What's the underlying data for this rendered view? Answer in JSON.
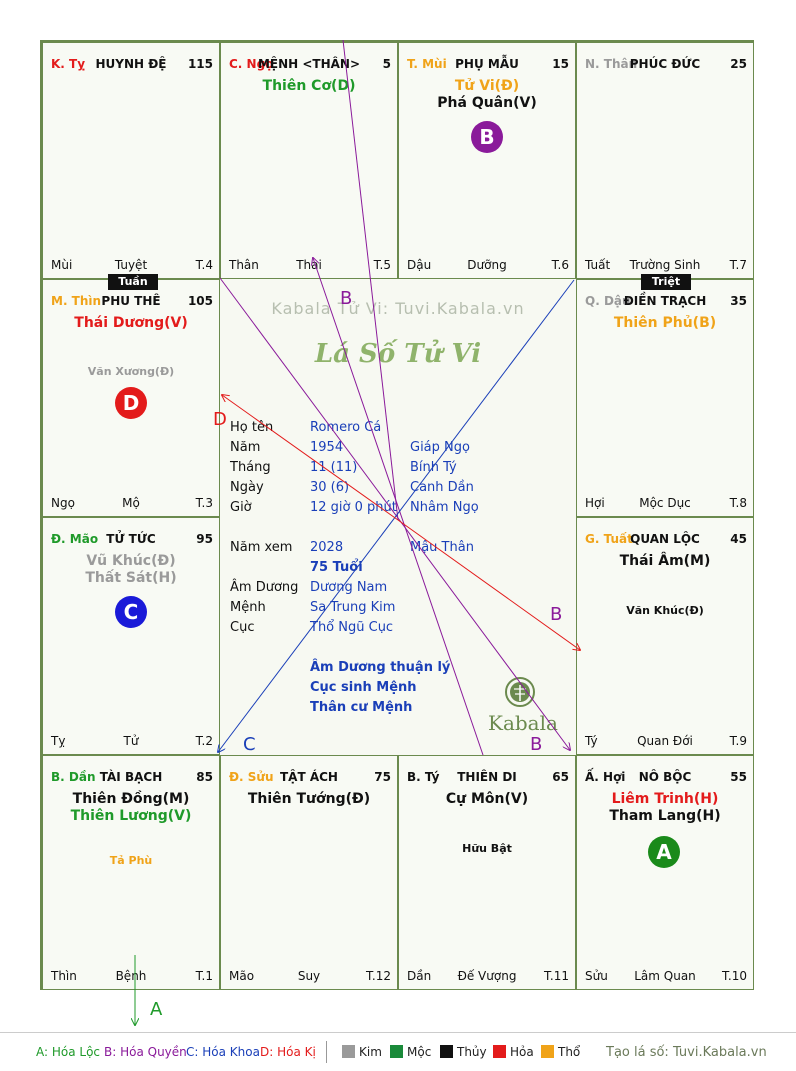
{
  "colors": {
    "fire": "#e31b1b",
    "earth": "#f0a319",
    "wood": "#1f9a2a",
    "metal": "#9a9a9a",
    "water": "#111111",
    "quyen": "#8a1a9a",
    "khoa": "#1a3fb8"
  },
  "cells": [
    {
      "id": "huynh-de",
      "chi": "K. Tỵ",
      "chi_color": "#e31b1b",
      "name": "HUYNH ĐỆ",
      "num": "115",
      "stars": [],
      "minors": [],
      "ft_l": "Mùi",
      "ft_c": "Tuyệt",
      "ft_r": "T.4"
    },
    {
      "id": "menh",
      "chi": "C. Ngọ",
      "chi_color": "#e31b1b",
      "name": "MỆNH <THÂN>",
      "num": "5",
      "stars": [
        {
          "text": "Thiên Cơ(D)",
          "color": "#1f9a2a"
        }
      ],
      "minors": [],
      "ft_l": "Thân",
      "ft_c": "Thai",
      "ft_r": "T.5"
    },
    {
      "id": "phu-mau",
      "chi": "T. Mùi",
      "chi_color": "#f0a319",
      "name": "PHỤ MẪU",
      "num": "15",
      "stars": [
        {
          "text": "Tử Vi(Đ)",
          "color": "#f0a319"
        },
        {
          "text": "Phá Quân(V)",
          "color": "#111111"
        }
      ],
      "minors": [],
      "ft_l": "Dậu",
      "ft_c": "Dưỡng",
      "ft_r": "T.6"
    },
    {
      "id": "phuc-duc",
      "chi": "N. Thân",
      "chi_color": "#9a9a9a",
      "name": "PHÚC ĐỨC",
      "num": "25",
      "stars": [],
      "minors": [],
      "ft_l": "Tuất",
      "ft_c": "Trường Sinh",
      "ft_r": "T.7"
    },
    {
      "id": "phu-the",
      "chi": "M. Thìn",
      "chi_color": "#f0a319",
      "name": "PHU THÊ",
      "num": "105",
      "stars": [
        {
          "text": "Thái Dương(V)",
          "color": "#e31b1b"
        }
      ],
      "minors": [
        {
          "text": "Văn Xương(Đ)",
          "color": "#9a9a9a"
        }
      ],
      "ft_l": "Ngọ",
      "ft_c": "Mộ",
      "ft_r": "T.3"
    },
    {
      "id": "dien-trach",
      "chi": "Q. Dậu",
      "chi_color": "#9a9a9a",
      "name": "ĐIỀN TRẠCH",
      "num": "35",
      "stars": [
        {
          "text": "Thiên Phủ(B)",
          "color": "#f0a319"
        }
      ],
      "minors": [],
      "ft_l": "Hợi",
      "ft_c": "Mộc Dục",
      "ft_r": "T.8"
    },
    {
      "id": "tu-tuc",
      "chi": "Đ. Mão",
      "chi_color": "#1f9a2a",
      "name": "TỬ TỨC",
      "num": "95",
      "stars": [
        {
          "text": "Vũ Khúc(Đ)",
          "color": "#9a9a9a"
        },
        {
          "text": "Thất Sát(H)",
          "color": "#9a9a9a"
        }
      ],
      "minors": [],
      "ft_l": "Tỵ",
      "ft_c": "Tử",
      "ft_r": "T.2"
    },
    {
      "id": "quan-loc",
      "chi": "G. Tuất",
      "chi_color": "#f0a319",
      "name": "QUAN LỘC",
      "num": "45",
      "stars": [
        {
          "text": "Thái Âm(M)",
          "color": "#111111"
        }
      ],
      "minors": [
        {
          "text": "Văn Khúc(Đ)",
          "color": "#111111"
        }
      ],
      "ft_l": "Tý",
      "ft_c": "Quan Đới",
      "ft_r": "T.9"
    },
    {
      "id": "tai-bach",
      "chi": "B. Dần",
      "chi_color": "#1f9a2a",
      "name": "TÀI BẠCH",
      "num": "85",
      "stars": [
        {
          "text": "Thiên Đồng(M)",
          "color": "#111111"
        },
        {
          "text": "Thiên Lương(V)",
          "color": "#1f9a2a"
        }
      ],
      "minors": [
        {
          "text": "Tả Phù",
          "color": "#f0a319"
        }
      ],
      "ft_l": "Thìn",
      "ft_c": "Bệnh",
      "ft_r": "T.1"
    },
    {
      "id": "tat-ach",
      "chi": "Đ. Sửu",
      "chi_color": "#f0a319",
      "name": "TẬT ÁCH",
      "num": "75",
      "stars": [
        {
          "text": "Thiên Tướng(Đ)",
          "color": "#111111"
        }
      ],
      "minors": [],
      "ft_l": "Mão",
      "ft_c": "Suy",
      "ft_r": "T.12"
    },
    {
      "id": "thien-di",
      "chi": "B. Tý",
      "chi_color": "#111111",
      "name": "THIÊN DI",
      "num": "65",
      "stars": [
        {
          "text": "Cự Môn(V)",
          "color": "#111111"
        }
      ],
      "minors": [
        {
          "text": "Hữu Bật",
          "color": "#111111"
        }
      ],
      "ft_l": "Dần",
      "ft_c": "Đế Vượng",
      "ft_r": "T.11"
    },
    {
      "id": "no-boc",
      "chi": "Ấ. Hợi",
      "chi_color": "#111111",
      "name": "NÔ BỘC",
      "num": "55",
      "stars": [
        {
          "text": "Liêm Trinh(H)",
          "color": "#e31b1b"
        },
        {
          "text": "Tham Lang(H)",
          "color": "#111111"
        }
      ],
      "minors": [],
      "ft_l": "Sửu",
      "ft_c": "Lâm Quan",
      "ft_r": "T.10"
    }
  ],
  "badges": {
    "a": "A",
    "b": "B",
    "c": "C",
    "d": "D"
  },
  "tags": {
    "tuan": "Tuần",
    "triet": "Triệt"
  },
  "center": {
    "watermark": "Kabala Tử Vi: Tuvi.Kabala.vn",
    "logo_title": "Lá Số Tử Vi",
    "rows": [
      {
        "label": "Họ tên",
        "v1": "Romero Cá",
        "v2": ""
      },
      {
        "label": "Năm",
        "v1": "1954",
        "v2": "Giáp Ngọ"
      },
      {
        "label": "Tháng",
        "v1": "11 (11)",
        "v2": "Bính Tý"
      },
      {
        "label": "Ngày",
        "v1": "30 (6)",
        "v2": "Canh Dần"
      },
      {
        "label": "Giờ",
        "v1": "12 giờ 0 phút",
        "v2": "Nhâm Ngọ"
      }
    ],
    "rows2": [
      {
        "label": "Năm xem",
        "v1": "2028",
        "v2": "Mậu Thân"
      },
      {
        "label": "",
        "v1": "75 Tuổi",
        "v2": ""
      },
      {
        "label": "Âm Dương",
        "v1": "Dương Nam",
        "v2": ""
      },
      {
        "label": "Mệnh",
        "v1": "Sa Trung Kim",
        "v2": ""
      },
      {
        "label": "Cục",
        "v1": "Thổ Ngũ Cục",
        "v2": ""
      }
    ],
    "notes": [
      "Âm Dương thuận lý",
      "Cục sinh Mệnh",
      "Thân cư Mệnh"
    ],
    "brand": "Kabala"
  },
  "lines": {
    "b1": "B",
    "b2": "B",
    "b3": "B",
    "c": "C",
    "d": "D",
    "a": "A"
  },
  "legend": {
    "a": "A: Hóa Lộc",
    "b": "B: Hóa Quyền",
    "c": "C: Hóa Khoa",
    "d": "D: Hóa Kị",
    "kim": "Kim",
    "moc": "Mộc",
    "thuy": "Thủy",
    "hoa": "Hỏa",
    "tho": "Thổ",
    "site": "Tạo lá số: Tuvi.Kabala.vn"
  }
}
